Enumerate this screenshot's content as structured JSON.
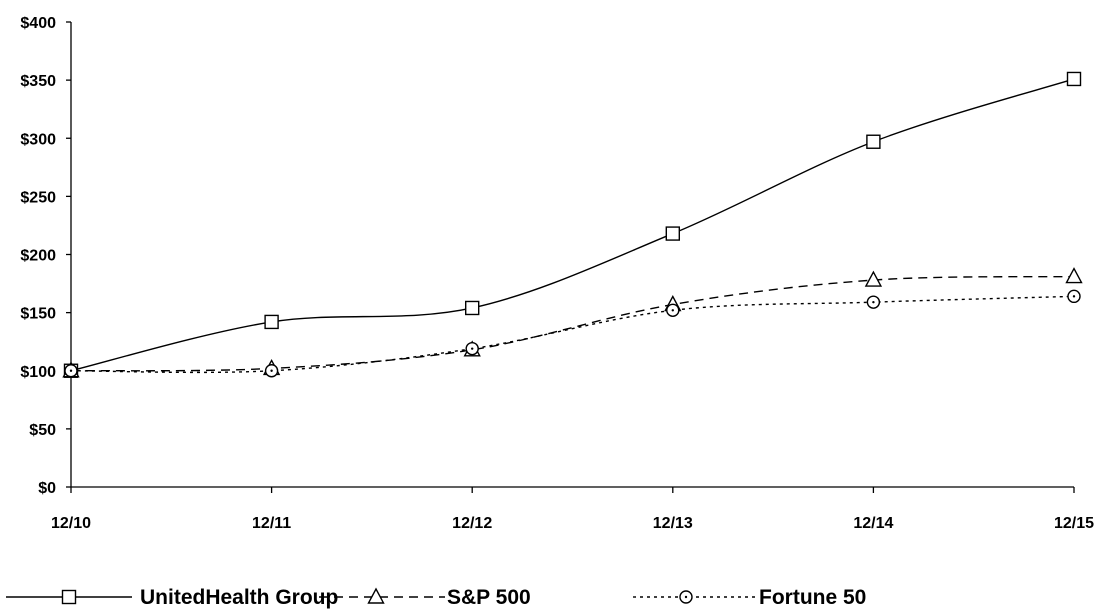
{
  "chart_data": {
    "type": "line",
    "title": "",
    "xlabel": "",
    "ylabel": "",
    "categories": [
      "12/10",
      "12/11",
      "12/12",
      "12/13",
      "12/14",
      "12/15"
    ],
    "y_ticks": [
      "$0",
      "$50",
      "$100",
      "$150",
      "$200",
      "$250",
      "$300",
      "$350",
      "$400"
    ],
    "ylim": [
      0,
      400
    ],
    "grid": false,
    "legend_position": "bottom",
    "series": [
      {
        "name": "UnitedHealth Group",
        "values": [
          100,
          142,
          154,
          218,
          297,
          351
        ],
        "marker": "square",
        "dash": "solid"
      },
      {
        "name": "S&P 500",
        "values": [
          100,
          102,
          118,
          157,
          178,
          181
        ],
        "marker": "triangle",
        "dash": "dashed"
      },
      {
        "name": "Fortune 50",
        "values": [
          100,
          100,
          119,
          152,
          159,
          164
        ],
        "marker": "circle",
        "dash": "dotted"
      }
    ]
  }
}
